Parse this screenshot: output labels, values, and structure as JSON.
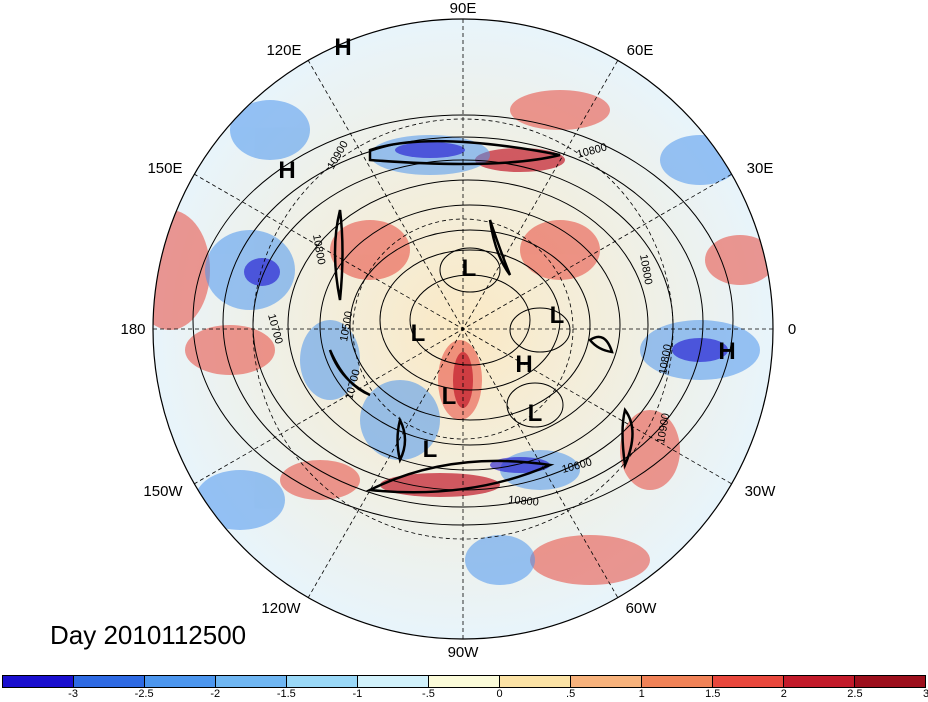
{
  "map": {
    "projection": "north-polar-stereographic",
    "longitude_labels": {
      "top": "90E",
      "upper_left": "120E",
      "upper_right": "60E",
      "left_upper": "150E",
      "right_upper": "30E",
      "left": "180",
      "right": "0",
      "left_lower": "150W",
      "right_lower": "30W",
      "lower_left": "120W",
      "lower_right": "60W",
      "bottom": "90W"
    },
    "pressure_centers": [
      {
        "label": "H"
      },
      {
        "label": "H"
      },
      {
        "label": "L"
      },
      {
        "label": "L"
      },
      {
        "label": "L"
      },
      {
        "label": "H"
      },
      {
        "label": "L"
      },
      {
        "label": "L"
      },
      {
        "label": "L"
      },
      {
        "label": "H"
      }
    ],
    "contour_labels": [
      "10900",
      "10800",
      "10800",
      "10500",
      "10700",
      "10700",
      "10600",
      "10800",
      "10900",
      "10800",
      "10800"
    ],
    "anomaly_fill": "red/blue shaded anomaly field",
    "contour_color": "#000000"
  },
  "title": {
    "day_text": "Day 2010112500"
  },
  "colorbar": {
    "colors": [
      "#1a0fcf",
      "#2e6ae3",
      "#4c96ee",
      "#6fb6f2",
      "#9ad8f7",
      "#d1f1fb",
      "#fbfbd9",
      "#fbe2a5",
      "#f7b27c",
      "#f08257",
      "#e8473c",
      "#c21a2a",
      "#9c0f1c"
    ],
    "tick_labels": [
      "-3",
      "-2.5",
      "-2",
      "-1.5",
      "-1",
      "-.5",
      "0",
      ".5",
      "1",
      "1.5",
      "2",
      "2.5",
      "3"
    ]
  }
}
